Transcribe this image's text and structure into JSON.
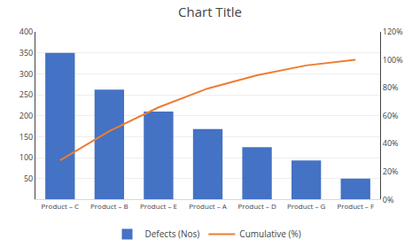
{
  "chart_data": {
    "type": "bar",
    "title": "Chart Title",
    "categories": [
      "Product – C",
      "Product – B",
      "Product – E",
      "Product – A",
      "Product – D",
      "Product – G",
      "Product – F"
    ],
    "series": [
      {
        "name": "Defects (Nos)",
        "type": "bar",
        "color": "#4472C4",
        "values": [
          350,
          262,
          210,
          168,
          125,
          93,
          50
        ]
      },
      {
        "name": "Cumulative (%)",
        "type": "line",
        "axis": "y2",
        "color": "#ED7D31",
        "values": [
          28.0,
          49.0,
          66.0,
          79.5,
          89.0,
          96.0,
          100.0
        ]
      }
    ],
    "ylim": [
      0,
      400
    ],
    "yticks": [
      50,
      100,
      150,
      200,
      250,
      300,
      350,
      400
    ],
    "y2lim": [
      0,
      120
    ],
    "y2ticks": [
      {
        "value": 0,
        "label": "0%"
      },
      {
        "value": 20,
        "label": "20%"
      },
      {
        "value": 40,
        "label": "40%"
      },
      {
        "value": 60,
        "label": "60%"
      },
      {
        "value": 80,
        "label": "80%"
      },
      {
        "value": 100,
        "label": "100%"
      },
      {
        "value": 120,
        "label": "120%"
      }
    ],
    "grid": true,
    "legend": "bottom"
  }
}
